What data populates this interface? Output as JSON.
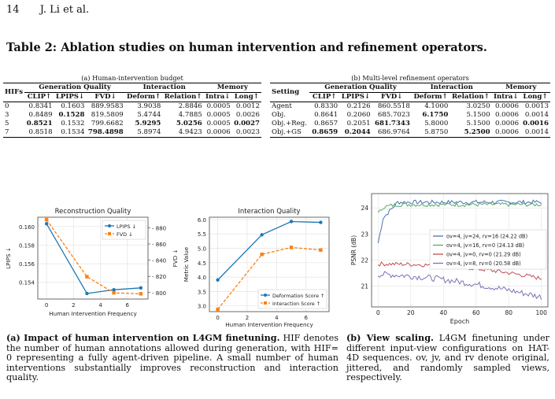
{
  "header": {
    "page_number": "14",
    "authors": "J. Li et al."
  },
  "table_title": "Table 2: Ablation studies on human intervention and refinement operators.",
  "table_a": {
    "caption": "(a) Human-intervention budget",
    "rowhead": "HIFs",
    "groups": [
      "Generation Quality",
      "Interaction",
      "Memory"
    ],
    "cols": [
      "CLIP↑",
      "LPIPS↓",
      "FVD↓",
      "Deform↑",
      "Relation↑",
      "Intra↓",
      "Long↑"
    ],
    "rows": [
      {
        "label": "0",
        "vals": [
          "0.8341",
          "0.1603",
          "889.9583",
          "3.9038",
          "2.8846",
          "0.0005",
          "0.0012"
        ]
      },
      {
        "label": "3",
        "vals": [
          "0.8489",
          "0.1528",
          "819.5809",
          "5.4744",
          "4.7885",
          "0.0005",
          "0.0026"
        ]
      },
      {
        "label": "5",
        "vals": [
          "0.8521",
          "0.1532",
          "799.6682",
          "5.9295",
          "5.0256",
          "0.0005",
          "0.0027"
        ]
      },
      {
        "label": "7",
        "vals": [
          "0.8518",
          "0.1534",
          "798.4898",
          "5.8974",
          "4.9423",
          "0.0006",
          "0.0023"
        ]
      }
    ]
  },
  "table_b": {
    "caption": "(b) Multi-level refinement operators",
    "rowhead": "Setting",
    "groups": [
      "Generation Quality",
      "Interaction",
      "Memory"
    ],
    "cols": [
      "CLIP↑",
      "LPIPS↓",
      "FVD↓",
      "Deform↑",
      "Relation↑",
      "Intra↓",
      "Long↑"
    ],
    "rows": [
      {
        "label": "Agent",
        "vals": [
          "0.8330",
          "0.2126",
          "860.5518",
          "4.1000",
          "3.0250",
          "0.0006",
          "0.0013"
        ]
      },
      {
        "label": "Obj.",
        "vals": [
          "0.8641",
          "0.2060",
          "685.7023",
          "6.1750",
          "5.1500",
          "0.0006",
          "0.0014"
        ]
      },
      {
        "label": "Obj.+Reg.",
        "vals": [
          "0.8657",
          "0.2051",
          "681.7343",
          "5.8000",
          "5.1500",
          "0.0006",
          "0.0016"
        ]
      },
      {
        "label": "Obj.+GS",
        "vals": [
          "0.8659",
          "0.2044",
          "686.9764",
          "5.8750",
          "5.2500",
          "0.0006",
          "0.0014"
        ]
      }
    ]
  },
  "chart_data": [
    {
      "type": "line",
      "title": "Reconstruction Quality",
      "xlabel": "Human Intervention Frequency",
      "ylabel": "LPIPS ↓",
      "y2label": "FVD ↓",
      "x": [
        0,
        3,
        5,
        7
      ],
      "xticks": [
        "0",
        "2",
        "4",
        "6"
      ],
      "series": [
        {
          "name": "LPIPS ↓",
          "values": [
            0.1603,
            0.1528,
            0.1532,
            0.1534
          ],
          "color": "#1f77b4",
          "axis": "left"
        },
        {
          "name": "FVD ↓",
          "values": [
            889.96,
            819.58,
            799.67,
            798.49
          ],
          "color": "#ff7f0e",
          "axis": "right"
        }
      ],
      "ylim": [
        0.1522,
        0.161
      ],
      "y2lim": [
        792,
        893
      ],
      "yticks": [
        "0.154",
        "0.156",
        "0.158",
        "0.160"
      ],
      "y2ticks": [
        "800",
        "820",
        "840",
        "860",
        "880"
      ],
      "grid": true,
      "legend": "top-right"
    },
    {
      "type": "line",
      "title": "Interaction Quality",
      "xlabel": "Human Intervention Frequency",
      "ylabel": "Metric Value",
      "x": [
        0,
        3,
        5,
        7
      ],
      "xticks": [
        "0",
        "2",
        "4",
        "6"
      ],
      "series": [
        {
          "name": "Deformation Score ↑",
          "values": [
            3.9,
            5.47,
            5.93,
            5.9
          ],
          "color": "#1f77b4"
        },
        {
          "name": "Interaction Score ↑",
          "values": [
            2.88,
            4.79,
            5.03,
            4.94
          ],
          "color": "#ff7f0e"
        }
      ],
      "ylim": [
        2.8,
        6.08
      ],
      "yticks": [
        "3.0",
        "3.5",
        "4.0",
        "4.5",
        "5.0",
        "5.5",
        "6.0"
      ],
      "grid": true,
      "legend": "bottom-right"
    },
    {
      "type": "line",
      "xlabel": "Epoch",
      "ylabel": "PSNR (dB)",
      "xlim": [
        -4,
        104
      ],
      "ylim": [
        20.2,
        24.55
      ],
      "xticks": [
        "0",
        "20",
        "40",
        "60",
        "80",
        "100"
      ],
      "yticks": [
        "21",
        "22",
        "23",
        "24"
      ],
      "series": [
        {
          "name": "ov=4, jv=24, rv=16 (24.22 dB)",
          "color": "#4c72b0",
          "start": 23.4,
          "end": 24.22,
          "noise": 0.08
        },
        {
          "name": "ov=4, jv=16, rv=0 (24.13 dB)",
          "color": "#55a868",
          "start": 24.0,
          "end": 24.13,
          "noise": 0.08
        },
        {
          "name": "ov=4, jv=0, rv=0 (21.29 dB)",
          "color": "#c44e52",
          "start": 21.85,
          "end": 21.29,
          "noise": 0.08
        },
        {
          "name": "ov=4, jv=8, rv=0 (20.58 dB)",
          "color": "#8172b3",
          "start": 21.45,
          "end": 20.58,
          "noise": 0.12
        }
      ],
      "grid": true,
      "legend": "center-right"
    }
  ],
  "captions": {
    "a_label": "(a) Impact of human intervention on L4GM finetuning.",
    "a_text": "HIF denotes the number of human annotations allowed during generation, with HIF= 0 representing a fully agent-driven pipeline. A small number of human interventions substantially improves reconstruction and interaction quality.",
    "b_label": "(b) View scaling.",
    "b_text": "L4GM finetuning under different input-view configurations on HAT-4D sequences. ov, jv, and rv denote original, jittered, and randomly sampled views, respectively."
  }
}
